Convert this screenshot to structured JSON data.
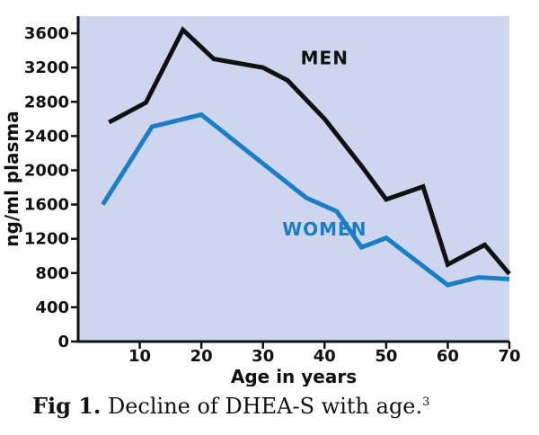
{
  "chart_data": {
    "type": "line",
    "xlabel": "Age in years",
    "ylabel": "ng/ml plasma",
    "xlim": [
      0,
      70
    ],
    "ylim": [
      0,
      3800
    ],
    "xticks": [
      10,
      20,
      30,
      40,
      50,
      60,
      70
    ],
    "yticks": [
      0,
      400,
      800,
      1200,
      1600,
      2000,
      2400,
      2800,
      3200,
      3600
    ],
    "background_color": "#cdd6ee",
    "grid": false,
    "series": [
      {
        "name": "MEN",
        "color": "#111111",
        "x": [
          5,
          11,
          17,
          22,
          30,
          34,
          40,
          46,
          50,
          56,
          60,
          66,
          70
        ],
        "y": [
          2560,
          2790,
          3640,
          3300,
          3200,
          3050,
          2600,
          2050,
          1660,
          1810,
          900,
          1130,
          790
        ]
      },
      {
        "name": "WOMEN",
        "color": "#1a7ec6",
        "x": [
          4,
          12,
          20,
          30,
          37,
          42,
          46,
          50,
          60,
          65,
          70
        ],
        "y": [
          1600,
          2510,
          2650,
          2080,
          1680,
          1520,
          1100,
          1210,
          660,
          750,
          730
        ]
      }
    ],
    "annotations": [
      {
        "text": "MEN",
        "series": 0,
        "at": [
          40,
          3240
        ]
      },
      {
        "text": "WOMEN",
        "series": 1,
        "at": [
          40,
          1240
        ]
      }
    ]
  },
  "caption": {
    "label": "Fig 1.",
    "text": " Decline of DHEA-S with age.",
    "ref": "3"
  }
}
